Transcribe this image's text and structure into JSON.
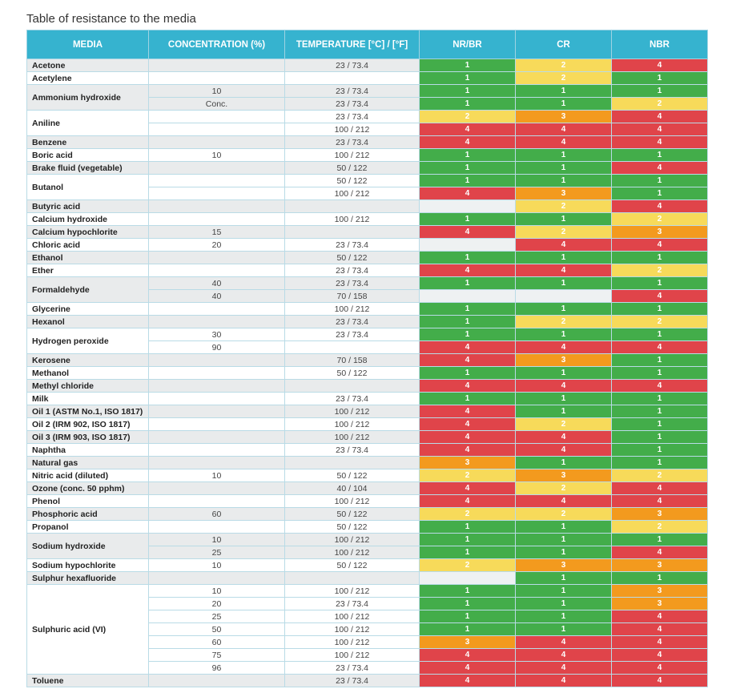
{
  "title": "Table of resistance to the media",
  "table": {
    "columns": [
      "MEDIA",
      "CONCENTRATION (%)",
      "TEMPERATURE [°C] / [°F]",
      "NR/BR",
      "CR",
      "NBR"
    ],
    "rating_colors": [
      "#43ad4a",
      "#f7da5a",
      "#f39a1e",
      "#e0444a"
    ],
    "empty_color": "#eef1f2",
    "rows": [
      {
        "media": "Acetone",
        "concentration": null,
        "temperature": "23 / 73.4",
        "ratings": [
          1,
          2,
          4
        ]
      },
      {
        "media": "Acetylene",
        "concentration": null,
        "temperature": null,
        "ratings": [
          1,
          2,
          1
        ]
      },
      {
        "media": "Ammonium hydroxide",
        "concentration": "10",
        "temperature": "23 / 73.4",
        "ratings": [
          1,
          1,
          1
        ]
      },
      {
        "media": null,
        "concentration": "Conc.",
        "temperature": "23 / 73.4",
        "ratings": [
          1,
          1,
          2
        ]
      },
      {
        "media": "Aniline",
        "concentration": null,
        "temperature": "23 / 73.4",
        "ratings": [
          2,
          3,
          4
        ]
      },
      {
        "media": null,
        "concentration": null,
        "temperature": "100 / 212",
        "ratings": [
          4,
          4,
          4
        ]
      },
      {
        "media": "Benzene",
        "concentration": null,
        "temperature": "23 / 73.4",
        "ratings": [
          4,
          4,
          4
        ]
      },
      {
        "media": "Boric acid",
        "concentration": "10",
        "temperature": "100 / 212",
        "ratings": [
          1,
          1,
          1
        ]
      },
      {
        "media": "Brake fluid (vegetable)",
        "concentration": null,
        "temperature": "50 / 122",
        "ratings": [
          1,
          1,
          4
        ]
      },
      {
        "media": "Butanol",
        "concentration": null,
        "temperature": "50 / 122",
        "ratings": [
          1,
          1,
          1
        ]
      },
      {
        "media": null,
        "concentration": null,
        "temperature": "100 / 212",
        "ratings": [
          4,
          3,
          1
        ]
      },
      {
        "media": "Butyric acid",
        "concentration": null,
        "temperature": null,
        "ratings": [
          null,
          2,
          4
        ]
      },
      {
        "media": "Calcium hydroxide",
        "concentration": null,
        "temperature": "100 / 212",
        "ratings": [
          1,
          1,
          2
        ]
      },
      {
        "media": "Calcium hypochlorite",
        "concentration": "15",
        "temperature": null,
        "ratings": [
          4,
          2,
          3
        ]
      },
      {
        "media": "Chloric acid",
        "concentration": "20",
        "temperature": "23 / 73.4",
        "ratings": [
          null,
          4,
          4
        ]
      },
      {
        "media": "Ethanol",
        "concentration": null,
        "temperature": "50 / 122",
        "ratings": [
          1,
          1,
          1
        ]
      },
      {
        "media": "Ether",
        "concentration": null,
        "temperature": "23 / 73.4",
        "ratings": [
          4,
          4,
          2
        ]
      },
      {
        "media": "Formaldehyde",
        "concentration": "40",
        "temperature": "23 / 73.4",
        "ratings": [
          1,
          1,
          1
        ]
      },
      {
        "media": null,
        "concentration": "40",
        "temperature": "70 / 158",
        "ratings": [
          null,
          null,
          4
        ]
      },
      {
        "media": "Glycerine",
        "concentration": null,
        "temperature": "100 / 212",
        "ratings": [
          1,
          1,
          1
        ]
      },
      {
        "media": "Hexanol",
        "concentration": null,
        "temperature": "23 / 73.4",
        "ratings": [
          1,
          2,
          2
        ]
      },
      {
        "media": "Hydrogen peroxide",
        "concentration": "30",
        "temperature": "23 / 73.4",
        "ratings": [
          1,
          1,
          1
        ]
      },
      {
        "media": null,
        "concentration": "90",
        "temperature": null,
        "ratings": [
          4,
          4,
          4
        ]
      },
      {
        "media": "Kerosene",
        "concentration": null,
        "temperature": "70 / 158",
        "ratings": [
          4,
          3,
          1
        ]
      },
      {
        "media": "Methanol",
        "concentration": null,
        "temperature": "50 / 122",
        "ratings": [
          1,
          1,
          1
        ]
      },
      {
        "media": "Methyl chloride",
        "concentration": null,
        "temperature": null,
        "ratings": [
          4,
          4,
          4
        ]
      },
      {
        "media": "Milk",
        "concentration": null,
        "temperature": "23 / 73.4",
        "ratings": [
          1,
          1,
          1
        ]
      },
      {
        "media": "Oil 1 (ASTM No.1, ISO 1817)",
        "concentration": null,
        "temperature": "100 / 212",
        "ratings": [
          4,
          1,
          1
        ]
      },
      {
        "media": "Oil 2 (IRM 902, ISO 1817)",
        "concentration": null,
        "temperature": "100 / 212",
        "ratings": [
          4,
          2,
          1
        ]
      },
      {
        "media": "Oil 3 (IRM 903, ISO 1817)",
        "concentration": null,
        "temperature": "100 / 212",
        "ratings": [
          4,
          4,
          1
        ]
      },
      {
        "media": "Naphtha",
        "concentration": null,
        "temperature": "23 / 73.4",
        "ratings": [
          4,
          4,
          1
        ]
      },
      {
        "media": "Natural gas",
        "concentration": null,
        "temperature": null,
        "ratings": [
          3,
          1,
          1
        ]
      },
      {
        "media": "Nitric acid (diluted)",
        "concentration": "10",
        "temperature": "50 / 122",
        "ratings": [
          2,
          3,
          2
        ]
      },
      {
        "media": "Ozone (conc. 50 pphm)",
        "concentration": null,
        "temperature": "40 / 104",
        "ratings": [
          4,
          2,
          4
        ]
      },
      {
        "media": "Phenol",
        "concentration": null,
        "temperature": "100 / 212",
        "ratings": [
          4,
          4,
          4
        ]
      },
      {
        "media": "Phosphoric acid",
        "concentration": "60",
        "temperature": "50 / 122",
        "ratings": [
          2,
          2,
          3
        ]
      },
      {
        "media": "Propanol",
        "concentration": null,
        "temperature": "50 / 122",
        "ratings": [
          1,
          1,
          2
        ]
      },
      {
        "media": "Sodium hydroxide",
        "concentration": "10",
        "temperature": "100 / 212",
        "ratings": [
          1,
          1,
          1
        ]
      },
      {
        "media": null,
        "concentration": "25",
        "temperature": "100 / 212",
        "ratings": [
          1,
          1,
          4
        ]
      },
      {
        "media": "Sodium hypochlorite",
        "concentration": "10",
        "temperature": "50 / 122",
        "ratings": [
          2,
          3,
          3
        ]
      },
      {
        "media": "Sulphur hexafluoride",
        "concentration": null,
        "temperature": null,
        "ratings": [
          null,
          1,
          1
        ]
      },
      {
        "media": "Sulphuric acid (VI)",
        "concentration": "10",
        "temperature": "100 / 212",
        "ratings": [
          1,
          1,
          3
        ]
      },
      {
        "media": null,
        "concentration": "20",
        "temperature": "23 / 73.4",
        "ratings": [
          1,
          1,
          3
        ]
      },
      {
        "media": null,
        "concentration": "25",
        "temperature": "100 / 212",
        "ratings": [
          1,
          1,
          4
        ]
      },
      {
        "media": null,
        "concentration": "50",
        "temperature": "100 / 212",
        "ratings": [
          1,
          1,
          4
        ]
      },
      {
        "media": null,
        "concentration": "60",
        "temperature": "100 / 212",
        "ratings": [
          3,
          4,
          4
        ]
      },
      {
        "media": null,
        "concentration": "75",
        "temperature": "100 / 212",
        "ratings": [
          4,
          4,
          4
        ]
      },
      {
        "media": null,
        "concentration": "96",
        "temperature": "23 / 73.4",
        "ratings": [
          4,
          4,
          4
        ]
      },
      {
        "media": "Toluene",
        "concentration": null,
        "temperature": "23 / 73.4",
        "ratings": [
          4,
          4,
          4
        ]
      }
    ]
  }
}
